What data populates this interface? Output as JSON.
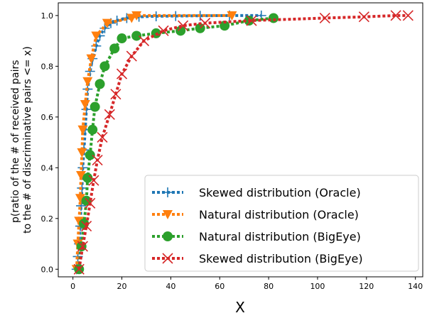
{
  "chart_data": {
    "type": "scatter",
    "xlabel": "X",
    "ylabel": [
      "p(ratio of the # of received pairs",
      "to the # of discriminative pairs <= x)"
    ],
    "xlim": [
      -6,
      143
    ],
    "ylim": [
      -0.03,
      1.05
    ],
    "xticks": [
      0,
      20,
      40,
      60,
      80,
      100,
      120,
      140
    ],
    "yticks": [
      0.0,
      0.2,
      0.4,
      0.6,
      0.8,
      1.0
    ],
    "ytick_labels": [
      "0.0",
      "0.2",
      "0.4",
      "0.6",
      "0.8",
      "1.0"
    ],
    "grid": false,
    "legend_position": "lower-right",
    "series": [
      {
        "name": "Skewed distribution (Oracle)",
        "color": "#1f77b4",
        "marker": "plus",
        "x": [
          1.5,
          2,
          2.5,
          3,
          3.3,
          3.7,
          4,
          4.5,
          5,
          5.5,
          6,
          7,
          8,
          9.5,
          11,
          13,
          15.5,
          18,
          22,
          27,
          34,
          42,
          52,
          64,
          77
        ],
        "y": [
          0.0,
          0.05,
          0.1,
          0.17,
          0.25,
          0.32,
          0.4,
          0.47,
          0.55,
          0.63,
          0.71,
          0.78,
          0.83,
          0.88,
          0.92,
          0.95,
          0.97,
          0.98,
          0.99,
          0.995,
          0.997,
          0.998,
          0.999,
          1.0,
          1.0
        ]
      },
      {
        "name": "Natural distribution (Oracle)",
        "color": "#ff7f0e",
        "marker": "triangle-down",
        "x": [
          1.5,
          2,
          2.5,
          3,
          3.3,
          3.7,
          4,
          5,
          6,
          7.5,
          9.5,
          14,
          24,
          26,
          65
        ],
        "y": [
          0.0,
          0.1,
          0.19,
          0.28,
          0.37,
          0.46,
          0.55,
          0.65,
          0.74,
          0.83,
          0.92,
          0.97,
          0.99,
          1.0,
          1.0
        ]
      },
      {
        "name": "Natural distribution (BigEye)",
        "color": "#2ca02c",
        "marker": "circle",
        "x": [
          2.5,
          3.5,
          4.5,
          5.5,
          6,
          7,
          8,
          9,
          11,
          13,
          17,
          20,
          26,
          34,
          44,
          52,
          62,
          72,
          82
        ],
        "y": [
          0.0,
          0.09,
          0.18,
          0.27,
          0.36,
          0.45,
          0.55,
          0.64,
          0.73,
          0.8,
          0.87,
          0.91,
          0.92,
          0.93,
          0.94,
          0.95,
          0.96,
          0.98,
          0.99
        ]
      },
      {
        "name": "Skewed distribution (BigEye)",
        "color": "#d62728",
        "marker": "x",
        "x": [
          2.5,
          4,
          5.5,
          7,
          8.5,
          10,
          12,
          15,
          17.5,
          20,
          24,
          29,
          37,
          45,
          54,
          73,
          103,
          119,
          132,
          137
        ],
        "y": [
          0.0,
          0.09,
          0.17,
          0.26,
          0.35,
          0.43,
          0.52,
          0.61,
          0.69,
          0.77,
          0.84,
          0.9,
          0.94,
          0.96,
          0.97,
          0.98,
          0.99,
          0.995,
          1.0,
          1.0
        ]
      }
    ]
  }
}
